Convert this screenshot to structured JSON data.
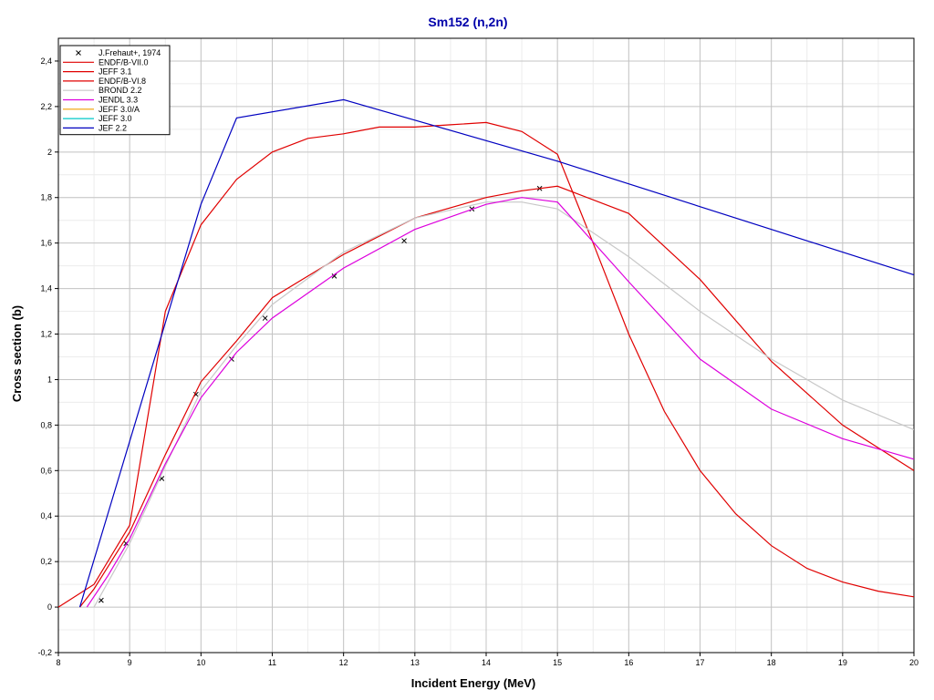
{
  "chart_data": {
    "type": "line",
    "title": "Sm152 (n,2n)",
    "xlabel": "Incident Energy (MeV)",
    "ylabel": "Cross section (b)",
    "xlim": [
      8,
      20
    ],
    "ylim": [
      -0.2,
      2.5
    ],
    "grid": true,
    "legend_position": "top-left",
    "x_ticks": [
      8,
      9,
      10,
      11,
      12,
      13,
      14,
      15,
      16,
      17,
      18,
      19,
      20
    ],
    "x_tick_labels": [
      "8",
      "9",
      "10",
      "11",
      "12",
      "13",
      "14",
      "15",
      "16",
      "17",
      "18",
      "19",
      "20"
    ],
    "y_ticks": [
      -0.2,
      0,
      0.2,
      0.4,
      0.6,
      0.8,
      1,
      1.2,
      1.4,
      1.6,
      1.8,
      2,
      2.2,
      2.4
    ],
    "y_tick_labels": [
      "-0,2",
      "0",
      "0,2",
      "0,4",
      "0,6",
      "0,8",
      "1",
      "1,2",
      "1,4",
      "1,6",
      "1,8",
      "2",
      "2,2",
      "2,4"
    ],
    "series": [
      {
        "name": "J.Frehaut+, 1974",
        "kind": "markers",
        "color": "#000000",
        "x": [
          8.6,
          8.95,
          9.45,
          9.93,
          10.43,
          10.9,
          11.87,
          12.85,
          13.8,
          14.75
        ],
        "y": [
          0.03,
          0.28,
          0.565,
          0.935,
          1.09,
          1.27,
          1.455,
          1.61,
          1.75,
          1.84
        ]
      },
      {
        "name": "ENDF/B-VII.0",
        "kind": "line",
        "color": "#e00000",
        "x": [
          8.3,
          8.5,
          9.0,
          9.5,
          10.0,
          10.5,
          11.0,
          12.0,
          13.0,
          14.0,
          14.5,
          15.0,
          16.0,
          17.0,
          18.0,
          19.0,
          20.0
        ],
        "y": [
          0.0,
          0.08,
          0.33,
          0.67,
          0.99,
          1.17,
          1.36,
          1.55,
          1.71,
          1.8,
          1.83,
          1.85,
          1.73,
          1.44,
          1.08,
          0.8,
          0.6
        ]
      },
      {
        "name": "JEFF 3.1",
        "kind": "line",
        "color": "#e00000",
        "x": [
          8.0,
          8.5,
          9.0,
          9.5,
          10.0,
          10.5,
          11.0,
          11.5,
          12.0,
          12.5,
          13.0,
          13.5,
          14.0,
          14.5,
          15.0,
          15.5,
          16.0,
          16.5,
          17.0,
          17.5,
          18.0,
          18.5,
          19.0,
          19.5,
          20.0
        ],
        "y": [
          0.0,
          0.1,
          0.36,
          1.3,
          1.68,
          1.88,
          2.0,
          2.06,
          2.08,
          2.11,
          2.11,
          2.12,
          2.13,
          2.09,
          1.99,
          1.6,
          1.2,
          0.86,
          0.6,
          0.41,
          0.27,
          0.17,
          0.11,
          0.07,
          0.045
        ]
      },
      {
        "name": "ENDF/B-VI.8",
        "kind": "line",
        "color": "#e00000",
        "x": [],
        "y": []
      },
      {
        "name": "BROND 2.2",
        "kind": "line",
        "color": "#c8c8c8",
        "x": [
          8.5,
          9.0,
          9.5,
          10.0,
          10.5,
          11.0,
          12.0,
          13.0,
          14.0,
          14.5,
          15.0,
          16.0,
          17.0,
          18.0,
          19.0,
          20.0
        ],
        "y": [
          0.0,
          0.28,
          0.62,
          0.95,
          1.15,
          1.33,
          1.56,
          1.71,
          1.78,
          1.78,
          1.75,
          1.54,
          1.3,
          1.09,
          0.91,
          0.78
        ]
      },
      {
        "name": "JENDL 3.3",
        "kind": "line",
        "color": "#dd00dd",
        "x": [
          8.4,
          8.7,
          9.0,
          9.5,
          10.0,
          10.5,
          11.0,
          12.0,
          13.0,
          14.0,
          14.5,
          15.0,
          16.0,
          17.0,
          18.0,
          19.0,
          20.0
        ],
        "y": [
          0.0,
          0.14,
          0.3,
          0.63,
          0.92,
          1.12,
          1.27,
          1.49,
          1.66,
          1.77,
          1.8,
          1.78,
          1.43,
          1.09,
          0.87,
          0.74,
          0.65
        ]
      },
      {
        "name": "JEFF 3.0/A",
        "kind": "line",
        "color": "#f0a000",
        "x": [],
        "y": []
      },
      {
        "name": "JEFF 3.0",
        "kind": "line",
        "color": "#00c8c8",
        "x": [],
        "y": []
      },
      {
        "name": "JEF 2.2",
        "kind": "line",
        "color": "#0000c0",
        "x": [
          8.3,
          10.0,
          10.5,
          12.0,
          15.0,
          20.0
        ],
        "y": [
          0.0,
          1.77,
          2.15,
          2.23,
          1.96,
          1.46
        ]
      }
    ]
  }
}
